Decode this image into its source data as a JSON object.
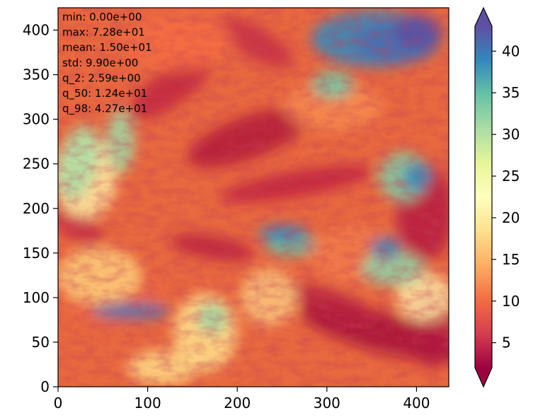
{
  "chart_data": {
    "type": "heatmap",
    "title": "",
    "xlabel": "",
    "ylabel": "",
    "xlim": [
      0,
      436
    ],
    "ylim": [
      0,
      425
    ],
    "x_ticks": [
      "0",
      "100",
      "200",
      "300",
      "400"
    ],
    "y_ticks": [
      "0",
      "50",
      "100",
      "150",
      "200",
      "250",
      "300",
      "350",
      "400"
    ],
    "colormap": "Spectral",
    "colorbar": {
      "vmin": 2,
      "vmax": 43,
      "ticks": [
        "5",
        "10",
        "15",
        "20",
        "25",
        "30",
        "35",
        "40"
      ],
      "extend": "both"
    },
    "stats": [
      "min: 0.00e+00",
      "max: 7.28e+01",
      "mean: 1.50e+01",
      "std: 9.90e+00",
      "q_2: 2.59e+00",
      "q_50: 1.24e+01",
      "q_98: 4.27e+01"
    ],
    "colors": {
      "low": "#9e0142",
      "mid": "#ffffbf",
      "high": "#5e4fa2"
    }
  }
}
